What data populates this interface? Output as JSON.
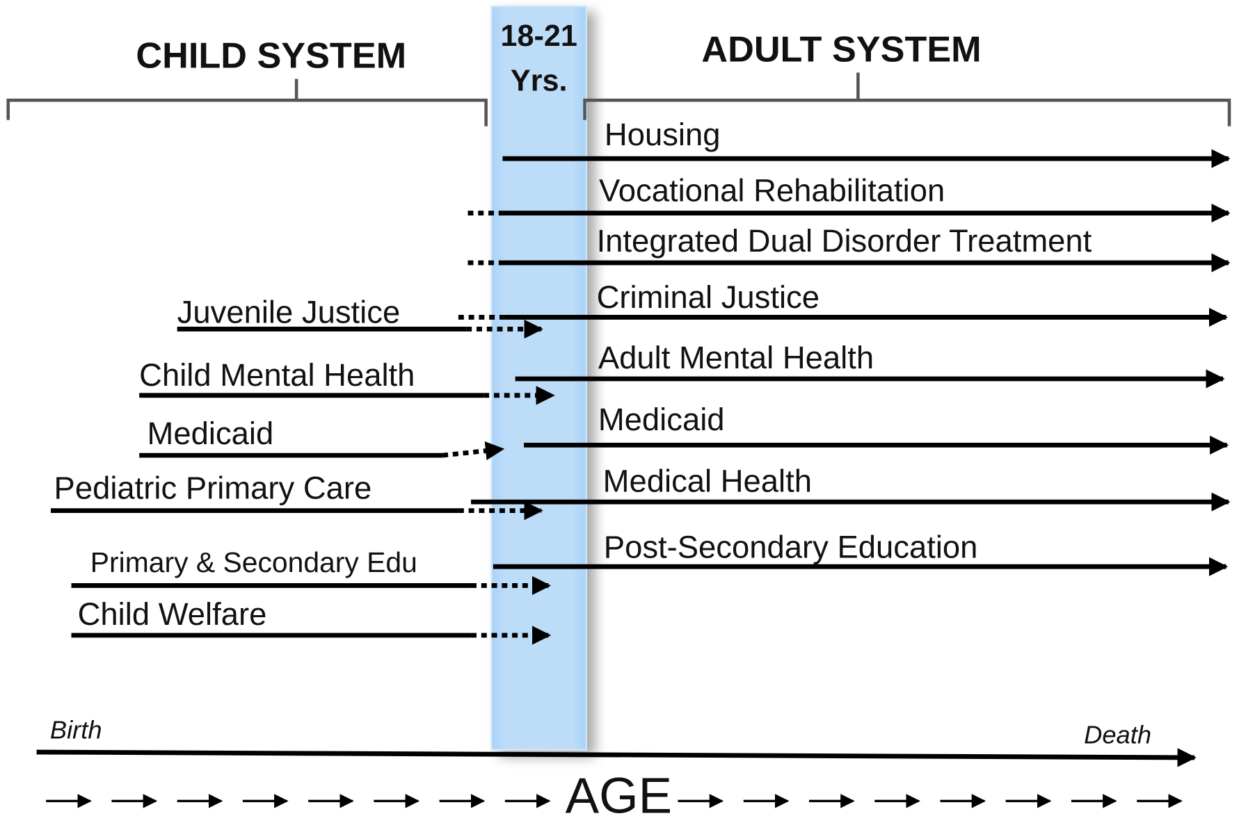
{
  "header": {
    "child_system": "CHILD SYSTEM",
    "adult_system": "ADULT SYSTEM",
    "transition_line1": "18-21",
    "transition_line2": "Yrs."
  },
  "adult_services": [
    "Housing",
    "Vocational Rehabilitation",
    "Integrated Dual Disorder Treatment",
    "Criminal Justice",
    "Adult Mental Health",
    "Medicaid",
    "Medical Health",
    "Post-Secondary Education"
  ],
  "child_services": [
    "Juvenile Justice",
    "Child Mental Health",
    "Medicaid",
    "Pediatric Primary Care",
    "Primary & Secondary Edu",
    "Child Welfare"
  ],
  "timeline": {
    "start": "Birth",
    "end": "Death",
    "axis_label": "AGE"
  }
}
